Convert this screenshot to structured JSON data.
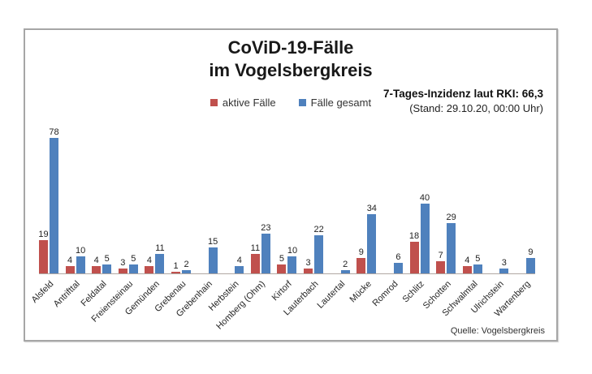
{
  "title": {
    "line1": "CoViD-19-Fälle",
    "line2": "im Vogelsbergkreis"
  },
  "legend": [
    {
      "label": "aktive Fälle",
      "color": "#C0504D"
    },
    {
      "label": "Fälle gesamt",
      "color": "#4F81BD"
    }
  ],
  "incidence": {
    "line1": "7-Tages-Inzidenz laut RKI: 66,3",
    "line2": "(Stand: 29.10.20, 00:00 Uhr)"
  },
  "source": "Quelle: Vogelsbergkreis",
  "chart_data": {
    "type": "bar",
    "title": "CoViD-19-Fälle im Vogelsbergkreis",
    "categories": [
      "Alsfeld",
      "Antrifttal",
      "Feldatal",
      "Freiensteinau",
      "Gemünden",
      "Grebenau",
      "Grebenhain",
      "Herbstein",
      "Homberg (Ohm)",
      "Kirtorf",
      "Lauterbach",
      "Lautertal",
      "Mücke",
      "Romrod",
      "Schlitz",
      "Schotten",
      "Schwalmtal",
      "Ulrichstein",
      "Wartenberg"
    ],
    "series": [
      {
        "name": "aktive Fälle",
        "color": "#C0504D",
        "values": [
          19,
          4,
          4,
          3,
          4,
          1,
          0,
          0,
          11,
          5,
          3,
          0,
          9,
          0,
          18,
          7,
          4,
          0,
          0
        ]
      },
      {
        "name": "Fälle gesamt",
        "color": "#4F81BD",
        "values": [
          78,
          10,
          5,
          5,
          11,
          2,
          15,
          4,
          23,
          10,
          22,
          2,
          34,
          6,
          40,
          29,
          5,
          3,
          9
        ]
      }
    ],
    "ylim": [
      0,
      78
    ],
    "grid": false,
    "y_axis_visible": false,
    "data_labels": true,
    "zero_value_labels_hidden": true,
    "legend_position": "top-center",
    "x_label_rotation_deg": -45
  }
}
